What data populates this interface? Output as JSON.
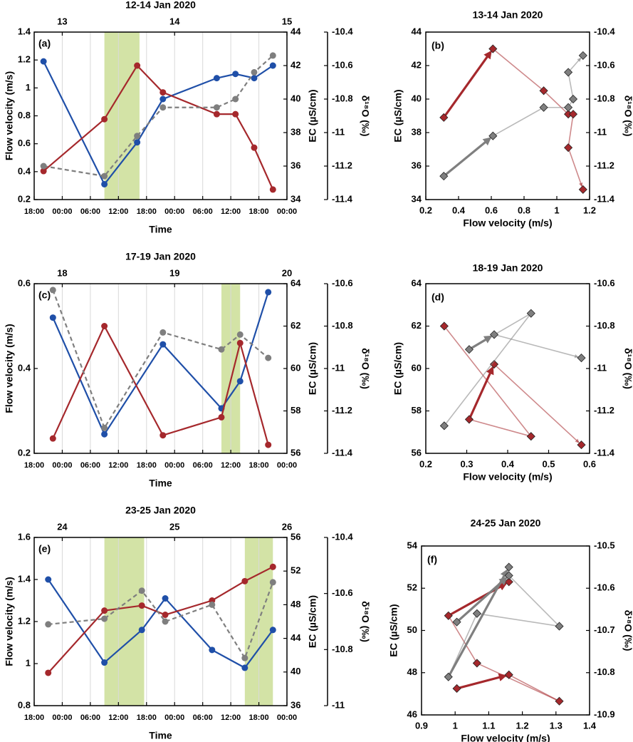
{
  "chart_data": [
    {
      "type": "line",
      "title": "12-14 Jan 2020",
      "panel_label": "(a)",
      "xlabel": "Time",
      "x": [
        "12 20:00",
        "13 09:00",
        "13 16:00",
        "13 21:30",
        "14 09:00",
        "14 13:00",
        "14 17:00",
        "14 21:00"
      ],
      "xlim": [
        "12 18:00",
        "15 00:00"
      ],
      "xticks": [
        {
          "value": "12 18:00",
          "label": "18:00"
        },
        {
          "value": "13 00:00",
          "label": "00:00"
        },
        {
          "value": "13 06:00",
          "label": "06:00"
        },
        {
          "value": "13 12:00",
          "label": "12:00"
        },
        {
          "value": "13 18:00",
          "label": "18:00"
        },
        {
          "value": "14 00:00",
          "label": "00:00"
        },
        {
          "value": "14 06:00",
          "label": "06:00"
        },
        {
          "value": "14 12:00",
          "label": "12:00"
        },
        {
          "value": "14 18:00",
          "label": "18:00"
        },
        {
          "value": "15 00:00",
          "label": "00:00"
        }
      ],
      "top_ticks": [
        {
          "value": "13 00:00",
          "label": "13"
        },
        {
          "value": "14 00:00",
          "label": "14"
        },
        {
          "value": "15 00:00",
          "label": "15"
        }
      ],
      "shade": [
        [
          "13 09:00",
          "13 16:30"
        ]
      ],
      "shade_color": "#d3e3a6",
      "grid": true,
      "ylim": [
        0.2,
        1.4
      ],
      "yticks": [
        0.2,
        0.4,
        0.6,
        0.8,
        1,
        1.2,
        1.4
      ],
      "y2lim": [
        34,
        44
      ],
      "y2ticks": [
        34,
        36,
        38,
        40,
        42,
        44
      ],
      "y3lim": [
        -11.4,
        -10.4
      ],
      "y3ticks": [
        -11.4,
        -11.2,
        -11,
        -10.8,
        -10.6,
        -10.4
      ],
      "series": [
        {
          "name": "Flow velocity (m/s)",
          "color": "#1f4fa8",
          "axis": "y",
          "values": [
            1.19,
            0.31,
            0.61,
            0.92,
            1.07,
            1.1,
            1.07,
            1.16
          ]
        },
        {
          "name": "EC (µS/cm)",
          "color": "#a5282c",
          "axis": "y2",
          "values": [
            35.7,
            38.8,
            42,
            40.4,
            39.1,
            39.1,
            37.1,
            34.6
          ]
        },
        {
          "name": "δ¹⁸O (‰)",
          "color": "#7f7f7f",
          "axis": "y3",
          "dashed": true,
          "values": [
            -11.2,
            -11.26,
            -11.02,
            -10.85,
            -10.85,
            -10.8,
            -10.64,
            -10.54
          ]
        }
      ]
    },
    {
      "type": "scatter",
      "title": "13-14 Jan 2020",
      "panel_label": "(b)",
      "xlabel": "Flow velocity (m/s)",
      "x": [
        0.31,
        0.61,
        0.92,
        1.07,
        1.1,
        1.07,
        1.16
      ],
      "xlim": [
        0.2,
        1.2
      ],
      "xticks": [
        0.2,
        0.4,
        0.6,
        0.8,
        1,
        1.2
      ],
      "ylim": [
        34,
        44
      ],
      "yticks": [
        34,
        36,
        38,
        40,
        42,
        44
      ],
      "y2lim": [
        -11.4,
        -10.4
      ],
      "y2ticks": [
        -11.4,
        -11.2,
        -11,
        -10.8,
        -10.6,
        -10.4
      ],
      "highlight": [
        0
      ],
      "series": [
        {
          "name": "EC (µS/cm)",
          "color": "#a5282c",
          "axis": "y",
          "values": [
            38.9,
            43,
            40.5,
            39.1,
            39.1,
            37.1,
            34.6
          ]
        },
        {
          "name": "δ¹⁸O (‰)",
          "color": "#7f7f7f",
          "axis": "y2",
          "values": [
            -11.26,
            -11.02,
            -10.85,
            -10.85,
            -10.8,
            -10.64,
            -10.54
          ]
        }
      ]
    },
    {
      "type": "line",
      "title": "17-19 Jan 2020",
      "panel_label": "(c)",
      "xlabel": "Time",
      "x": [
        "17 22:00",
        "18 09:00",
        "18 21:30",
        "19 10:00",
        "19 14:00",
        "19 20:00"
      ],
      "xlim": [
        "17 18:00",
        "20 00:00"
      ],
      "xticks": [
        {
          "value": "17 18:00",
          "label": "18:00"
        },
        {
          "value": "18 00:00",
          "label": "00:00"
        },
        {
          "value": "18 06:00",
          "label": "06:00"
        },
        {
          "value": "18 12:00",
          "label": "12:00"
        },
        {
          "value": "18 18:00",
          "label": "18:00"
        },
        {
          "value": "19 00:00",
          "label": "00:00"
        },
        {
          "value": "19 06:00",
          "label": "06:00"
        },
        {
          "value": "19 12:00",
          "label": "12:00"
        },
        {
          "value": "19 18:00",
          "label": "18:00"
        },
        {
          "value": "20 00:00",
          "label": "00:00"
        }
      ],
      "top_ticks": [
        {
          "value": "18 00:00",
          "label": "18"
        },
        {
          "value": "19 00:00",
          "label": "19"
        },
        {
          "value": "20 00:00",
          "label": "20"
        }
      ],
      "shade": [
        [
          "19 10:00",
          "19 14:00"
        ]
      ],
      "shade_color": "#d3e3a6",
      "grid": true,
      "ylim": [
        0.2,
        0.6
      ],
      "yticks": [
        0.2,
        0.4,
        0.6
      ],
      "y2lim": [
        56,
        64
      ],
      "y2ticks": [
        56,
        58,
        60,
        62,
        64
      ],
      "y3lim": [
        -11.4,
        -10.6
      ],
      "y3ticks": [
        -11.4,
        -11.2,
        -11,
        -10.8,
        -10.6
      ],
      "series": [
        {
          "name": "Flow velocity (m/s)",
          "color": "#1f4fa8",
          "axis": "y",
          "values": [
            0.52,
            0.245,
            0.457,
            0.306,
            0.37,
            0.58
          ]
        },
        {
          "name": "EC (µS/cm)",
          "color": "#a5282c",
          "axis": "y2",
          "values": [
            56.7,
            62,
            56.85,
            57.7,
            61.2,
            56.4
          ]
        },
        {
          "name": "δ¹⁸O (‰)",
          "color": "#7f7f7f",
          "axis": "y3",
          "dashed": true,
          "values": [
            -10.63,
            -11.28,
            -10.83,
            -10.91,
            -10.84,
            -10.95
          ]
        }
      ]
    },
    {
      "type": "scatter",
      "title": "18-19 Jan 2020",
      "panel_label": "(d)",
      "xlabel": "Flow velocity (m/s)",
      "x": [
        0.245,
        0.457,
        0.306,
        0.367,
        0.58
      ],
      "xlim": [
        0.2,
        0.6
      ],
      "xticks": [
        0.2,
        0.3,
        0.4,
        0.5,
        0.6
      ],
      "ylim": [
        56,
        64
      ],
      "yticks": [
        56,
        58,
        60,
        62,
        64
      ],
      "y2lim": [
        -11.4,
        -10.6
      ],
      "y2ticks": [
        -11.4,
        -11.2,
        -11,
        -10.8,
        -10.6
      ],
      "highlight": [
        2
      ],
      "series": [
        {
          "name": "EC (µS/cm)",
          "color": "#a5282c",
          "axis": "y",
          "values": [
            62,
            56.8,
            57.6,
            60.2,
            56.4
          ]
        },
        {
          "name": "δ¹⁸O (‰)",
          "color": "#7f7f7f",
          "axis": "y2",
          "values": [
            -11.27,
            -10.74,
            -10.91,
            -10.84,
            -10.95
          ]
        }
      ]
    },
    {
      "type": "line",
      "title": "23-25 Jan 2020",
      "panel_label": "(e)",
      "xlabel": "Time",
      "x": [
        "23 21:00",
        "24 09:00",
        "24 17:00",
        "24 22:00",
        "25 08:00",
        "25 15:00",
        "25 21:00"
      ],
      "xlim": [
        "23 18:00",
        "26 00:00"
      ],
      "xticks": [
        {
          "value": "23 18:00",
          "label": "18:00"
        },
        {
          "value": "24 00:00",
          "label": "00:00"
        },
        {
          "value": "24 06:00",
          "label": "06:00"
        },
        {
          "value": "24 12:00",
          "label": "12:00"
        },
        {
          "value": "24 18:00",
          "label": "18:00"
        },
        {
          "value": "25 00:00",
          "label": "00:00"
        },
        {
          "value": "25 06:00",
          "label": "06:00"
        },
        {
          "value": "25 12:00",
          "label": "12:00"
        },
        {
          "value": "25 18:00",
          "label": "18:00"
        },
        {
          "value": "26 00:00",
          "label": "00:00"
        }
      ],
      "top_ticks": [
        {
          "value": "24 00:00",
          "label": "24"
        },
        {
          "value": "25 00:00",
          "label": "25"
        },
        {
          "value": "26 00:00",
          "label": "26"
        }
      ],
      "shade": [
        [
          "24 09:00",
          "24 17:30"
        ],
        [
          "25 15:00",
          "25 21:00"
        ]
      ],
      "shade_color": "#d3e3a6",
      "grid": true,
      "ylim": [
        0.8,
        1.6
      ],
      "yticks": [
        0.8,
        1,
        1.2,
        1.4,
        1.6
      ],
      "y2lim": [
        36,
        56
      ],
      "y2ticks": [
        36,
        40,
        44,
        48,
        52,
        56
      ],
      "y3lim": [
        -11,
        -10.4
      ],
      "y3ticks": [
        -11,
        -10.8,
        -10.6,
        -10.4
      ],
      "series": [
        {
          "name": "Flow velocity (m/s)",
          "color": "#1f4fa8",
          "axis": "y",
          "values": [
            1.4,
            1.005,
            1.16,
            1.31,
            1.065,
            0.98,
            1.16
          ]
        },
        {
          "name": "EC (µS/cm)",
          "color": "#a5282c",
          "axis": "y2",
          "values": [
            39.9,
            47.3,
            47.9,
            46.8,
            48.5,
            50.8,
            52.5
          ]
        },
        {
          "name": "δ¹⁸O (‰)",
          "color": "#7f7f7f",
          "axis": "y3",
          "dashed": true,
          "values": [
            -10.71,
            -10.69,
            -10.59,
            -10.7,
            -10.64,
            -10.83,
            -10.56
          ]
        }
      ]
    },
    {
      "type": "scatter",
      "title": "24-25 Jan 2020",
      "panel_label": "(f)",
      "xlabel": "Flow velocity (m/s)",
      "x": [
        1.005,
        1.16,
        1.31,
        1.065,
        0.98,
        1.16
      ],
      "xlim": [
        0.9,
        1.4
      ],
      "xticks": [
        0.9,
        1,
        1.1,
        1.2,
        1.3,
        1.4
      ],
      "ylim": [
        46,
        54
      ],
      "yticks": [
        46,
        48,
        50,
        52,
        54
      ],
      "y2lim": [
        -10.9,
        -10.5
      ],
      "y2ticks": [
        -10.9,
        -10.8,
        -10.7,
        -10.6,
        -10.5
      ],
      "highlight": [
        0,
        4
      ],
      "series": [
        {
          "name": "EC (µS/cm)",
          "color": "#a5282c",
          "axis": "y",
          "values": [
            47.25,
            47.9,
            46.65,
            48.45,
            50.7,
            52.3
          ]
        },
        {
          "name": "δ¹⁸O (‰)",
          "color": "#7f7f7f",
          "axis": "y2",
          "values": [
            -10.68,
            -10.57,
            -10.69,
            -10.66,
            -10.81,
            -10.55
          ]
        }
      ]
    }
  ]
}
